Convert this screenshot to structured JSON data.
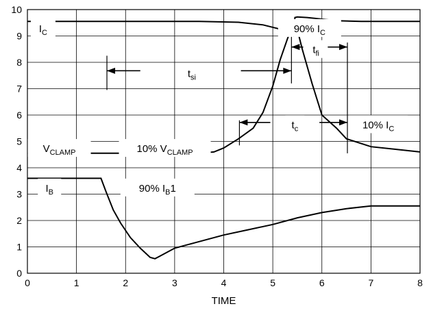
{
  "chart_data": {
    "type": "line",
    "xlabel": "TIME",
    "ylabel": "",
    "xlim": [
      0,
      8
    ],
    "ylim": [
      0,
      10
    ],
    "xticks": [
      "0",
      "1",
      "2",
      "3",
      "4",
      "5",
      "6",
      "7",
      "8"
    ],
    "yticks": [
      "0",
      "1",
      "2",
      "3",
      "4",
      "5",
      "6",
      "7",
      "8",
      "9",
      "10"
    ],
    "grid": true,
    "series": [
      {
        "name": "IC",
        "x": [
          0,
          3.5,
          4.3,
          4.8,
          5.1,
          5.3,
          5.42,
          5.45,
          5.5,
          5.7,
          5.9,
          6.3,
          6.8,
          7.5,
          8
        ],
        "y": [
          9.55,
          9.55,
          9.52,
          9.42,
          9.28,
          9.12,
          9.0,
          9.7,
          9.72,
          9.7,
          9.66,
          9.58,
          9.55,
          9.55,
          9.55
        ]
      },
      {
        "name": "VCLAMP",
        "x": [
          0,
          3.5,
          3.8,
          4.0,
          4.3,
          4.6,
          4.8,
          5.0,
          5.15,
          5.3,
          5.45,
          5.6,
          5.8,
          6.0,
          6.3,
          6.5,
          7.0,
          7.5,
          8.0
        ],
        "y": [
          4.55,
          4.55,
          4.6,
          4.75,
          5.1,
          5.5,
          6.1,
          7.1,
          8.1,
          8.9,
          9.6,
          8.5,
          7.2,
          6.0,
          5.5,
          5.1,
          4.8,
          4.7,
          4.6
        ]
      },
      {
        "name": "IB",
        "x": [
          0,
          1.5,
          1.6,
          1.75,
          1.9,
          2.1,
          2.3,
          2.5,
          2.6,
          2.7,
          3.0,
          3.5,
          4.0,
          4.5,
          5.0,
          5.5,
          6.0,
          6.5,
          7.0,
          7.5,
          8.0
        ],
        "y": [
          3.6,
          3.6,
          3.1,
          2.4,
          1.9,
          1.35,
          0.95,
          0.6,
          0.55,
          0.65,
          0.95,
          1.2,
          1.45,
          1.65,
          1.85,
          2.1,
          2.3,
          2.45,
          2.55,
          2.55,
          2.55
        ]
      }
    ],
    "annotations": [
      {
        "id": "ic",
        "html": "I<tspan font-size='11' dy='4'>C</tspan>"
      },
      {
        "id": "tsi",
        "html": "t<tspan font-size='11' dy='4'>si</tspan>"
      },
      {
        "id": "pct90ic",
        "html": "90% I<tspan font-size='11' dy='4'>C</tspan>"
      },
      {
        "id": "tfi",
        "html": "t<tspan font-size='11' dy='4'>fi</tspan>"
      },
      {
        "id": "tc",
        "html": "t<tspan font-size='11' dy='4'>c</tspan>"
      },
      {
        "id": "pct10ic",
        "html": "10% I<tspan font-size='11' dy='4'>C</tspan>"
      },
      {
        "id": "vclamp",
        "html": "V<tspan font-size='11' dy='4'>CLAMP</tspan>"
      },
      {
        "id": "pct10vclamp",
        "html": "10% V<tspan font-size='11' dy='4'>CLAMP</tspan>"
      },
      {
        "id": "ib",
        "html": "I<tspan font-size='11' dy='4'>B</tspan>"
      },
      {
        "id": "pct90ib1",
        "html": "90% I<tspan font-size='11' dy='4'>B</tspan><tspan dy='-4'>1</tspan>"
      }
    ]
  }
}
